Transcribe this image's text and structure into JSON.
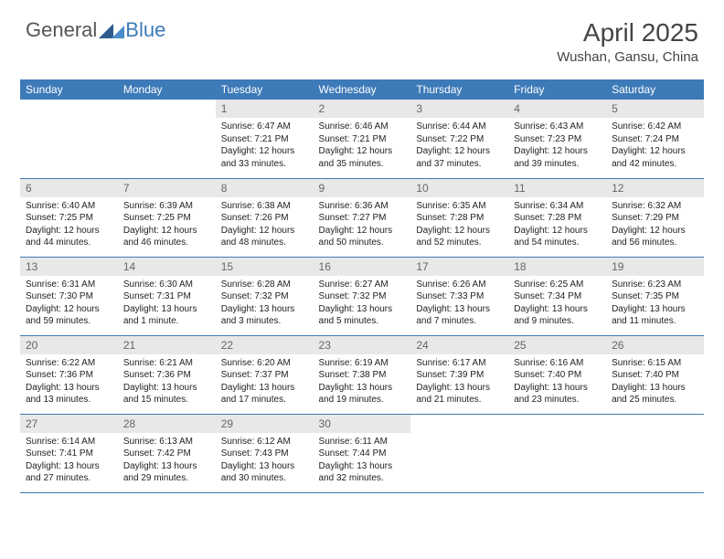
{
  "logo": {
    "text_left": "General",
    "text_right": "Blue"
  },
  "title": "April 2025",
  "location": "Wushan, Gansu, China",
  "colors": {
    "header_bg": "#3d7ab8",
    "header_text": "#ffffff",
    "daynum_bg": "#e8e8e8",
    "daynum_text": "#666666",
    "border": "#3d7ab8",
    "body_text": "#222222"
  },
  "weekdays": [
    "Sunday",
    "Monday",
    "Tuesday",
    "Wednesday",
    "Thursday",
    "Friday",
    "Saturday"
  ],
  "weeks": [
    [
      null,
      null,
      {
        "n": "1",
        "sr": "6:47 AM",
        "ss": "7:21 PM",
        "dl": "12 hours and 33 minutes."
      },
      {
        "n": "2",
        "sr": "6:46 AM",
        "ss": "7:21 PM",
        "dl": "12 hours and 35 minutes."
      },
      {
        "n": "3",
        "sr": "6:44 AM",
        "ss": "7:22 PM",
        "dl": "12 hours and 37 minutes."
      },
      {
        "n": "4",
        "sr": "6:43 AM",
        "ss": "7:23 PM",
        "dl": "12 hours and 39 minutes."
      },
      {
        "n": "5",
        "sr": "6:42 AM",
        "ss": "7:24 PM",
        "dl": "12 hours and 42 minutes."
      }
    ],
    [
      {
        "n": "6",
        "sr": "6:40 AM",
        "ss": "7:25 PM",
        "dl": "12 hours and 44 minutes."
      },
      {
        "n": "7",
        "sr": "6:39 AM",
        "ss": "7:25 PM",
        "dl": "12 hours and 46 minutes."
      },
      {
        "n": "8",
        "sr": "6:38 AM",
        "ss": "7:26 PM",
        "dl": "12 hours and 48 minutes."
      },
      {
        "n": "9",
        "sr": "6:36 AM",
        "ss": "7:27 PM",
        "dl": "12 hours and 50 minutes."
      },
      {
        "n": "10",
        "sr": "6:35 AM",
        "ss": "7:28 PM",
        "dl": "12 hours and 52 minutes."
      },
      {
        "n": "11",
        "sr": "6:34 AM",
        "ss": "7:28 PM",
        "dl": "12 hours and 54 minutes."
      },
      {
        "n": "12",
        "sr": "6:32 AM",
        "ss": "7:29 PM",
        "dl": "12 hours and 56 minutes."
      }
    ],
    [
      {
        "n": "13",
        "sr": "6:31 AM",
        "ss": "7:30 PM",
        "dl": "12 hours and 59 minutes."
      },
      {
        "n": "14",
        "sr": "6:30 AM",
        "ss": "7:31 PM",
        "dl": "13 hours and 1 minute."
      },
      {
        "n": "15",
        "sr": "6:28 AM",
        "ss": "7:32 PM",
        "dl": "13 hours and 3 minutes."
      },
      {
        "n": "16",
        "sr": "6:27 AM",
        "ss": "7:32 PM",
        "dl": "13 hours and 5 minutes."
      },
      {
        "n": "17",
        "sr": "6:26 AM",
        "ss": "7:33 PM",
        "dl": "13 hours and 7 minutes."
      },
      {
        "n": "18",
        "sr": "6:25 AM",
        "ss": "7:34 PM",
        "dl": "13 hours and 9 minutes."
      },
      {
        "n": "19",
        "sr": "6:23 AM",
        "ss": "7:35 PM",
        "dl": "13 hours and 11 minutes."
      }
    ],
    [
      {
        "n": "20",
        "sr": "6:22 AM",
        "ss": "7:36 PM",
        "dl": "13 hours and 13 minutes."
      },
      {
        "n": "21",
        "sr": "6:21 AM",
        "ss": "7:36 PM",
        "dl": "13 hours and 15 minutes."
      },
      {
        "n": "22",
        "sr": "6:20 AM",
        "ss": "7:37 PM",
        "dl": "13 hours and 17 minutes."
      },
      {
        "n": "23",
        "sr": "6:19 AM",
        "ss": "7:38 PM",
        "dl": "13 hours and 19 minutes."
      },
      {
        "n": "24",
        "sr": "6:17 AM",
        "ss": "7:39 PM",
        "dl": "13 hours and 21 minutes."
      },
      {
        "n": "25",
        "sr": "6:16 AM",
        "ss": "7:40 PM",
        "dl": "13 hours and 23 minutes."
      },
      {
        "n": "26",
        "sr": "6:15 AM",
        "ss": "7:40 PM",
        "dl": "13 hours and 25 minutes."
      }
    ],
    [
      {
        "n": "27",
        "sr": "6:14 AM",
        "ss": "7:41 PM",
        "dl": "13 hours and 27 minutes."
      },
      {
        "n": "28",
        "sr": "6:13 AM",
        "ss": "7:42 PM",
        "dl": "13 hours and 29 minutes."
      },
      {
        "n": "29",
        "sr": "6:12 AM",
        "ss": "7:43 PM",
        "dl": "13 hours and 30 minutes."
      },
      {
        "n": "30",
        "sr": "6:11 AM",
        "ss": "7:44 PM",
        "dl": "13 hours and 32 minutes."
      },
      null,
      null,
      null
    ]
  ],
  "labels": {
    "sunrise": "Sunrise:",
    "sunset": "Sunset:",
    "daylight": "Daylight:"
  }
}
